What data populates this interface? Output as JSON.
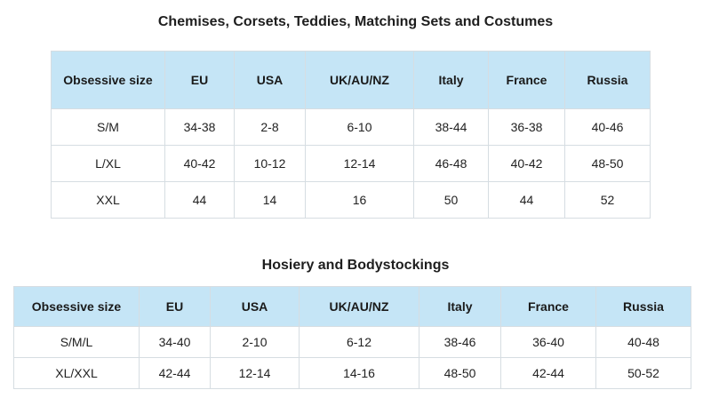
{
  "table1": {
    "title": "Chemises, Corsets, Teddies, Matching Sets and Costumes",
    "headers": [
      "Obsessive size",
      "EU",
      "USA",
      "UK/AU/NZ",
      "Italy",
      "France",
      "Russia"
    ],
    "rows": [
      [
        "S/M",
        "34-38",
        "2-8",
        "6-10",
        "38-44",
        "36-38",
        "40-46"
      ],
      [
        "L/XL",
        "40-42",
        "10-12",
        "12-14",
        "46-48",
        "40-42",
        "48-50"
      ],
      [
        "XXL",
        "44",
        "14",
        "16",
        "50",
        "44",
        "52"
      ]
    ]
  },
  "table2": {
    "title": "Hosiery and Bodystockings",
    "headers": [
      "Obsessive size",
      "EU",
      "USA",
      "UK/AU/NZ",
      "Italy",
      "France",
      "Russia"
    ],
    "rows": [
      [
        "S/M/L",
        "34-40",
        "2-10",
        "6-12",
        "38-46",
        "36-40",
        "40-48"
      ],
      [
        "XL/XXL",
        "42-44",
        "12-14",
        "14-16",
        "48-50",
        "42-44",
        "50-52"
      ]
    ]
  },
  "colors": {
    "header_bg": "#c5e5f6",
    "border": "#d6dde2"
  }
}
